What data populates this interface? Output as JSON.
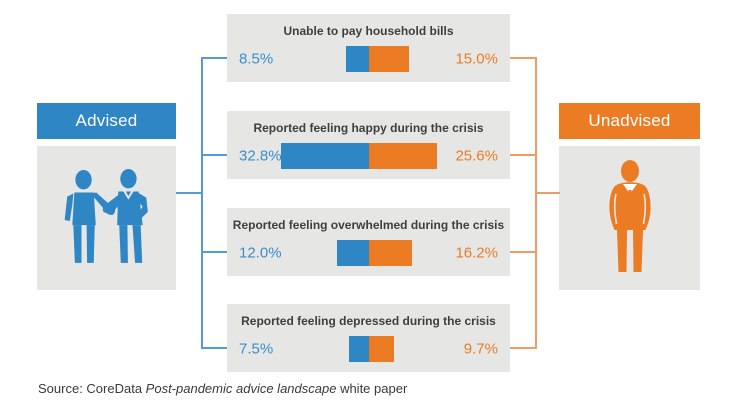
{
  "advised": {
    "label": "Advised",
    "color": "#2e86c4"
  },
  "unadvised": {
    "label": "Unadvised",
    "color": "#eb7c24"
  },
  "panels": [
    {
      "title": "Unable to pay household bills",
      "advised_label": "8.5%",
      "advised_value": 8.5,
      "unadvised_label": "15.0%",
      "unadvised_value": 15.0
    },
    {
      "title": "Reported feeling happy during the crisis",
      "advised_label": "32.8%",
      "advised_value": 32.8,
      "unadvised_label": "25.6%",
      "unadvised_value": 25.6
    },
    {
      "title": "Reported feeling overwhelmed during the crisis",
      "advised_label": "12.0%",
      "advised_value": 12.0,
      "unadvised_label": "16.2%",
      "unadvised_value": 16.2
    },
    {
      "title": "Reported feeling depressed during the crisis",
      "advised_label": "7.5%",
      "advised_value": 7.5,
      "unadvised_label": "9.7%",
      "unadvised_value": 9.7
    }
  ],
  "source": {
    "prefix": "Source: CoreData ",
    "italic": "Post-pandemic advice landscape",
    "suffix": " white paper"
  },
  "chart_data": {
    "type": "bar",
    "layout": "diverging paired bars, junction centered; segment length proportional to value",
    "categories": [
      "Unable to pay household bills",
      "Reported feeling happy during the crisis",
      "Reported feeling overwhelmed during the crisis",
      "Reported feeling depressed during the crisis"
    ],
    "series": [
      {
        "name": "Advised",
        "color": "#2e86c4",
        "values": [
          8.5,
          32.8,
          12.0,
          7.5
        ]
      },
      {
        "name": "Unadvised",
        "color": "#eb7c24",
        "values": [
          15.0,
          25.6,
          16.2,
          9.7
        ]
      }
    ],
    "unit": "%",
    "title": "",
    "legend_position": "left and right side labels",
    "panel_background": "#e6e6e5"
  }
}
